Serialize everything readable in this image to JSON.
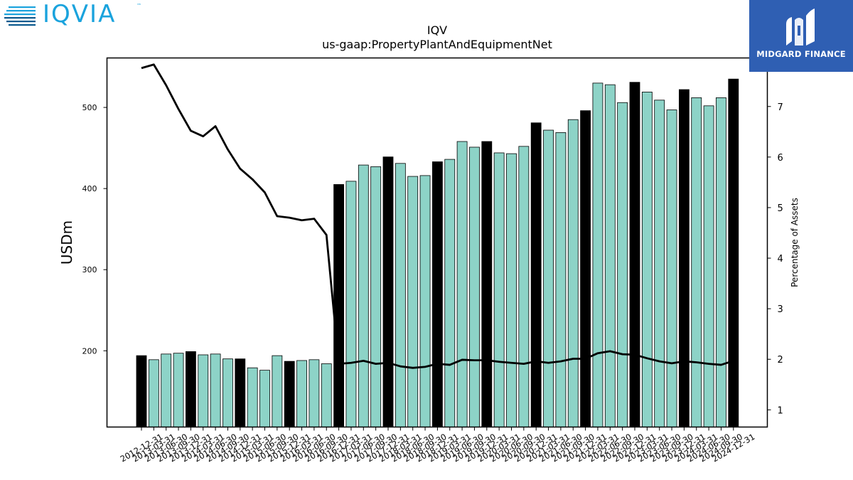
{
  "branding": {
    "left_logo": "IQVIA",
    "left_logo_tm": "™",
    "right_logo": "MIDGARD FINANCE"
  },
  "chart_data": {
    "type": "bar",
    "title": "IQV",
    "subtitle": "us-gaap:PropertyPlantAndEquipmentNet",
    "ylabel": "USDm",
    "y2label": "Percentage of Assets",
    "ylim": [
      106,
      561
    ],
    "y2lim": [
      0.66,
      7.96
    ],
    "yticks": [
      200,
      300,
      400,
      500
    ],
    "y2ticks": [
      1,
      2,
      3,
      4,
      5,
      6,
      7
    ],
    "colors": {
      "bar": "#8dd3c7",
      "bar_highlight": "#000000",
      "line": "#000000"
    },
    "categories": [
      "2012-12-31",
      "2013-03-31",
      "2013-06-30",
      "2013-09-30",
      "2013-12-31",
      "2014-03-31",
      "2014-06-30",
      "2014-09-30",
      "2014-12-31",
      "2015-03-31",
      "2015-06-30",
      "2015-09-30",
      "2015-12-31",
      "2016-03-31",
      "2016-06-30",
      "2016-09-30",
      "2016-12-31",
      "2017-03-31",
      "2017-06-30",
      "2017-09-30",
      "2017-12-31",
      "2018-03-31",
      "2018-06-30",
      "2018-09-30",
      "2018-12-31",
      "2019-03-31",
      "2019-06-30",
      "2019-09-30",
      "2019-12-31",
      "2020-03-31",
      "2020-06-30",
      "2020-09-30",
      "2020-12-31",
      "2021-03-31",
      "2021-06-30",
      "2021-09-30",
      "2021-12-31",
      "2022-03-31",
      "2022-06-30",
      "2022-09-30",
      "2022-12-31",
      "2023-03-31",
      "2023-06-30",
      "2023-09-30",
      "2023-12-31",
      "2024-03-31",
      "2024-06-30",
      "2024-09-30",
      "2024-12-31"
    ],
    "series": [
      {
        "kind": "bar",
        "values": [
          194,
          189,
          196,
          197,
          199,
          195,
          196,
          190,
          190,
          179,
          176,
          194,
          187,
          188,
          189,
          184,
          405,
          409,
          429,
          427,
          439,
          431,
          415,
          416,
          433,
          436,
          458,
          451,
          458,
          444,
          443,
          452,
          481,
          472,
          469,
          485,
          496,
          530,
          528,
          506,
          531,
          519,
          509,
          497,
          522,
          512,
          502,
          512,
          535
        ],
        "highlight": [
          true,
          false,
          false,
          false,
          true,
          false,
          false,
          false,
          true,
          false,
          false,
          false,
          true,
          false,
          false,
          false,
          true,
          false,
          false,
          false,
          true,
          false,
          false,
          false,
          true,
          false,
          false,
          false,
          true,
          false,
          false,
          false,
          true,
          false,
          false,
          false,
          true,
          false,
          false,
          false,
          true,
          false,
          false,
          false,
          true,
          false,
          false,
          false,
          true
        ]
      },
      {
        "kind": "line",
        "axis": "right",
        "values": [
          7.76,
          7.83,
          7.42,
          6.95,
          6.52,
          6.41,
          6.61,
          6.15,
          5.77,
          5.56,
          5.3,
          4.83,
          4.8,
          4.75,
          4.78,
          4.46,
          1.91,
          1.93,
          1.97,
          1.91,
          1.93,
          1.86,
          1.83,
          1.85,
          1.91,
          1.89,
          1.99,
          1.98,
          1.98,
          1.95,
          1.93,
          1.91,
          1.96,
          1.93,
          1.96,
          2.01,
          2.01,
          2.12,
          2.16,
          2.1,
          2.09,
          2.02,
          1.96,
          1.92,
          1.96,
          1.94,
          1.91,
          1.89,
          1.97
        ]
      }
    ]
  }
}
